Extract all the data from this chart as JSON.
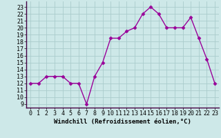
{
  "x": [
    0,
    1,
    2,
    3,
    4,
    5,
    6,
    7,
    8,
    9,
    10,
    11,
    12,
    13,
    14,
    15,
    16,
    17,
    18,
    19,
    20,
    21,
    22,
    23
  ],
  "y": [
    12,
    12,
    13,
    13,
    13,
    12,
    12,
    9,
    13,
    15,
    18.5,
    18.5,
    19.5,
    20,
    22,
    23,
    22,
    20,
    20,
    20,
    21.5,
    18.5,
    15.5,
    12
  ],
  "line_color": "#990099",
  "marker": "D",
  "marker_size": 2.5,
  "bg_color": "#cde8e8",
  "grid_color": "#aacccc",
  "xlabel": "Windchill (Refroidissement éolien,°C)",
  "xlabel_fontsize": 6.5,
  "xtick_labels": [
    "0",
    "1",
    "2",
    "3",
    "4",
    "5",
    "6",
    "7",
    "8",
    "9",
    "10",
    "11",
    "12",
    "13",
    "14",
    "15",
    "16",
    "17",
    "18",
    "19",
    "20",
    "21",
    "22",
    "23"
  ],
  "ytick_labels": [
    "9",
    "10",
    "11",
    "12",
    "13",
    "14",
    "15",
    "16",
    "17",
    "18",
    "19",
    "20",
    "21",
    "22",
    "23"
  ],
  "ylim": [
    8.5,
    23.8
  ],
  "xlim": [
    -0.5,
    23.5
  ],
  "tick_fontsize": 6.0,
  "linewidth": 1.0
}
